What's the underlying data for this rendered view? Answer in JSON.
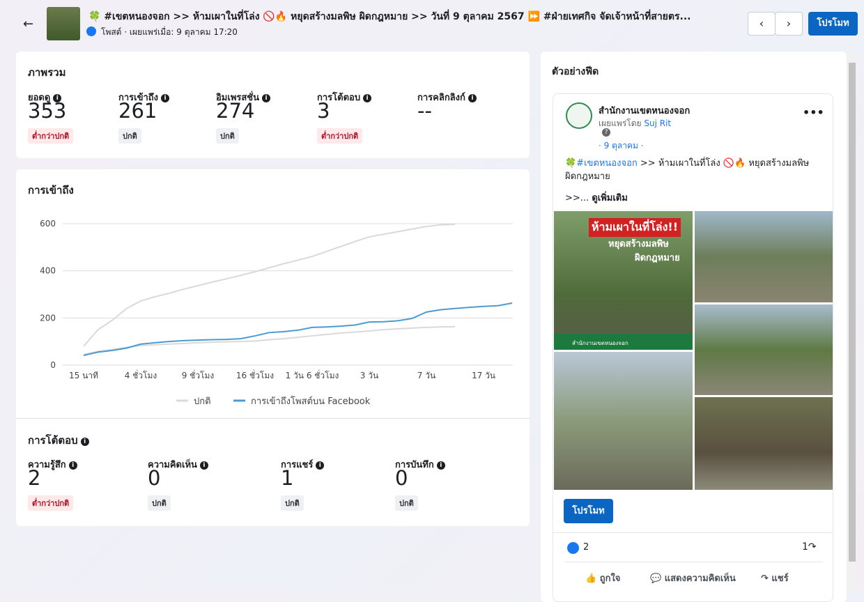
{
  "header": {
    "title": "🍀 #เขตหนองจอก >> ห้ามเผาในที่โล่ง 🚫🔥 หยุดสร้างมลพิษ ผิดกฎหมาย >> วันที่ 9 ตุลาคม 2567 ⏩ #ฝ่ายเทศกิจ จัดเจ้าหน้าที่สายตร...",
    "subtitle": "โพสต์ · เผยแพร่เมื่อ: 9 ตุลาคม 17:20",
    "boost": "โปรโมท"
  },
  "overview": {
    "title": "ภาพรวม",
    "metrics": [
      {
        "label": "ยอดดู",
        "value": 353,
        "status": "ต่ำกว่าปกติ"
      },
      {
        "label": "การเข้าถึง",
        "value": 261,
        "status": "ปกติ"
      },
      {
        "label": "อิมเพรสชั่น",
        "value": 274,
        "status": "ปกติ"
      },
      {
        "label": "การโต้ตอบ",
        "value": 3,
        "status": "ต่ำกว่าปกติ"
      },
      {
        "label": "การคลิกลิงก์",
        "value": "--"
      }
    ]
  },
  "reach_chart": {
    "type": "line",
    "title": "การเข้าถึง",
    "categories": [
      "15 นาที",
      null,
      null,
      null,
      "4 ชั่วโมง",
      null,
      null,
      null,
      "9 ชั่วโมง",
      null,
      null,
      null,
      "16 ชั่วโมง",
      null,
      null,
      null,
      "1 วัน 6 ชั่วโมง",
      null,
      null,
      null,
      "3 วัน",
      null,
      null,
      null,
      "7 วัน",
      null,
      null,
      null,
      "17 วัน",
      null,
      null
    ],
    "series": [
      {
        "name": "ปกติ",
        "color": "#d9d9d9",
        "values": [
          80,
          150,
          190,
          240,
          272,
          290,
          305,
          322,
          337,
          352,
          366,
          381,
          396,
          413,
          430,
          445,
          461,
          482,
          503,
          524,
          544,
          555,
          566,
          577,
          588,
          595,
          597,
          null,
          null,
          null,
          null
        ],
        "low": [
          45,
          58,
          66,
          75,
          83,
          86,
          89,
          92,
          95,
          97,
          99,
          100,
          102,
          108,
          112,
          118,
          124,
          130,
          136,
          140,
          145,
          150,
          154,
          157,
          160,
          162,
          163,
          null,
          null,
          null,
          null
        ]
      },
      {
        "name": "การเข้าถึงโพสต์บน Facebook",
        "color": "#4a9bd1",
        "values": [
          41,
          55,
          62,
          72,
          89,
          95,
          100,
          104,
          106,
          108,
          109,
          112,
          124,
          138,
          142,
          148,
          160,
          162,
          165,
          170,
          183,
          184,
          188,
          198,
          225,
          235,
          240,
          245,
          249,
          252,
          263
        ]
      }
    ],
    "ylim": [
      0,
      600
    ],
    "yticks": [
      0,
      200,
      400,
      600
    ],
    "grid": true
  },
  "interactions": {
    "title": "การโต้ตอบ",
    "metrics": [
      {
        "label": "ความรู้สึก",
        "value": 2,
        "status": "ต่ำกว่าปกติ"
      },
      {
        "label": "ความคิดเห็น",
        "value": 0,
        "status": "ปกติ"
      },
      {
        "label": "การแชร์",
        "value": 1,
        "status": "ปกติ"
      },
      {
        "label": "การบันทึก",
        "value": 0,
        "status": "ปกติ"
      }
    ]
  },
  "preview": {
    "title": "ตัวอย่างฟีด",
    "page_name": "สำนักงานเขตหนองจอก",
    "published_by": "เผยแพร่โดย",
    "author": "Suj Rit",
    "help": "?",
    "date": "· 9 ตุลาคม ·",
    "hashtag": "🍀#เขตหนองจอก",
    "text": " >> ห้ามเผาในที่โล่ง 🚫🔥 หยุดสร้างมลพิษ ผิดกฎหมาย",
    "text_more": ">>...",
    "see_more": "ดูเพิ่มเติม",
    "image_texts": [
      "ห้ามเผาในที่โล่ง!!",
      "หยุดสร้างมลพิษ",
      "ผิดกฎหมาย",
      "สำนักงานเขตหนองจอก"
    ],
    "boost": "โปรโมท",
    "reactions": "2",
    "shares": "1",
    "actions": [
      "ถูกใจ",
      "แสดงความคิดเห็น",
      "แชร์"
    ]
  }
}
